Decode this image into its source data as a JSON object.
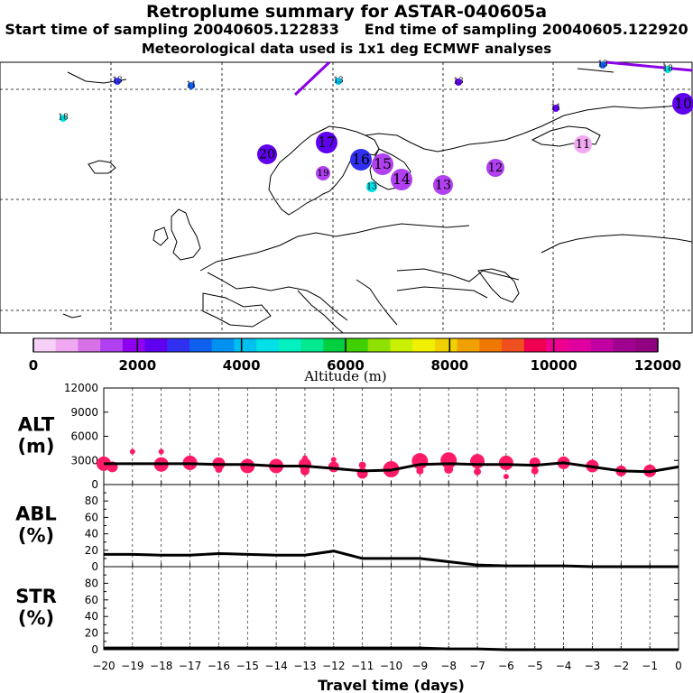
{
  "header": {
    "title": "Retroplume summary for ASTAR-040605a",
    "start_label": "Start time of sampling 20040605.122833",
    "end_label": "End time of sampling 20040605.122920",
    "met_label": "Meteorological data used is 1x1 deg ECMWF analyses"
  },
  "colors": {
    "scale": [
      "#f7d0f7",
      "#f0a8f0",
      "#d870e8",
      "#b040f0",
      "#9000f0",
      "#6000f0",
      "#3030f0",
      "#1060f0",
      "#0090f0",
      "#00c0f0",
      "#00e0e8",
      "#00f0c0",
      "#00e890",
      "#00d040",
      "#40d000",
      "#90e000",
      "#c8f000",
      "#f0f000",
      "#f0d000",
      "#f0a000",
      "#f07800",
      "#f05020",
      "#f00050",
      "#f00090",
      "#e000a0",
      "#c000a0",
      "#a00090",
      "#900080"
    ],
    "plume": "#ff1a66",
    "trajectory": "#8a00e6"
  },
  "map": {
    "labels": [
      {
        "text": "20",
        "alt": 2200
      },
      {
        "text": "19",
        "alt": 1400
      },
      {
        "text": "18",
        "alt": 4600
      },
      {
        "text": "17",
        "alt": 2500
      },
      {
        "text": "16",
        "alt": 2700
      },
      {
        "text": "15",
        "alt": 1700
      },
      {
        "text": "14",
        "alt": 1600
      },
      {
        "text": "13",
        "alt": 1500
      },
      {
        "text": "13",
        "alt": 4400
      },
      {
        "text": "13",
        "alt": 4000
      },
      {
        "text": "12",
        "alt": 1500
      },
      {
        "text": "11",
        "alt": 800
      },
      {
        "text": "10",
        "alt": 2200
      },
      {
        "text": "13",
        "alt": 2600
      },
      {
        "text": "11",
        "alt": 3300
      },
      {
        "text": "13",
        "alt": 2400
      },
      {
        "text": "11",
        "alt": 2200
      },
      {
        "text": "13",
        "alt": 3200
      },
      {
        "text": "18",
        "alt": 4600
      }
    ]
  },
  "colorbar": {
    "tick_labels": [
      "0",
      "2000",
      "4000",
      "6000",
      "8000",
      "10000",
      "12000"
    ],
    "title": "Altitude (m)"
  },
  "chart_data": [
    {
      "type": "line",
      "panel": "ALT",
      "ylabel": "ALT",
      "yunit": "(m)",
      "ylim": [
        0,
        12000
      ],
      "yticks": [
        "12000",
        "9000",
        "6000",
        "3000",
        "0"
      ],
      "x": [
        -20,
        -19,
        -18,
        -17,
        -16,
        -15,
        -14,
        -13,
        -12,
        -11,
        -10,
        -9,
        -8,
        -7,
        -6,
        -5,
        -4,
        -3,
        -2,
        -1,
        0
      ],
      "series": [
        {
          "name": "mean altitude",
          "values": [
            2600,
            2600,
            2600,
            2600,
            2500,
            2500,
            2300,
            2300,
            2000,
            1700,
            1800,
            2500,
            2600,
            2500,
            2500,
            2400,
            2700,
            2200,
            1700,
            1600,
            2200
          ]
        }
      ],
      "scatter": [
        {
          "x": -20,
          "y": 2600,
          "s": 8
        },
        {
          "x": -19.7,
          "y": 2200,
          "s": 6
        },
        {
          "x": -19,
          "y": 4100,
          "s": 3
        },
        {
          "x": -18,
          "y": 2500,
          "s": 8
        },
        {
          "x": -18,
          "y": 4100,
          "s": 3
        },
        {
          "x": -17,
          "y": 2700,
          "s": 8
        },
        {
          "x": -16,
          "y": 2600,
          "s": 7
        },
        {
          "x": -16,
          "y": 1900,
          "s": 4
        },
        {
          "x": -15,
          "y": 2300,
          "s": 8
        },
        {
          "x": -14,
          "y": 2300,
          "s": 8
        },
        {
          "x": -13,
          "y": 2500,
          "s": 7
        },
        {
          "x": -13,
          "y": 1700,
          "s": 5
        },
        {
          "x": -13,
          "y": 3300,
          "s": 3
        },
        {
          "x": -12,
          "y": 2200,
          "s": 6
        },
        {
          "x": -12,
          "y": 3100,
          "s": 3
        },
        {
          "x": -11,
          "y": 1400,
          "s": 6
        },
        {
          "x": -11,
          "y": 2400,
          "s": 4
        },
        {
          "x": -10,
          "y": 1900,
          "s": 9
        },
        {
          "x": -9,
          "y": 2900,
          "s": 9
        },
        {
          "x": -9,
          "y": 1700,
          "s": 4
        },
        {
          "x": -8,
          "y": 3000,
          "s": 9
        },
        {
          "x": -8,
          "y": 1900,
          "s": 5
        },
        {
          "x": -7,
          "y": 2900,
          "s": 8
        },
        {
          "x": -7,
          "y": 1600,
          "s": 4
        },
        {
          "x": -6,
          "y": 2700,
          "s": 8
        },
        {
          "x": -6,
          "y": 1000,
          "s": 3
        },
        {
          "x": -5,
          "y": 2700,
          "s": 6
        },
        {
          "x": -5,
          "y": 1700,
          "s": 4
        },
        {
          "x": -4,
          "y": 2700,
          "s": 7
        },
        {
          "x": -3,
          "y": 2300,
          "s": 7
        },
        {
          "x": -2,
          "y": 1700,
          "s": 6
        },
        {
          "x": -1,
          "y": 1700,
          "s": 7
        }
      ]
    },
    {
      "type": "line",
      "panel": "ABL",
      "ylabel": "ABL",
      "yunit": "(%)",
      "ylim": [
        0,
        100
      ],
      "yticks": [
        "80",
        "60",
        "40",
        "20",
        "0"
      ],
      "x": [
        -20,
        -19,
        -18,
        -17,
        -16,
        -15,
        -14,
        -13,
        -12,
        -11,
        -10,
        -9,
        -8,
        -7,
        -6,
        -5,
        -4,
        -3,
        -2,
        -1,
        0
      ],
      "series": [
        {
          "name": "ABL fraction",
          "values": [
            15,
            15,
            14,
            14,
            16,
            15,
            14,
            14,
            19,
            10,
            10,
            10,
            6,
            2,
            1,
            1,
            1,
            0,
            0,
            0,
            0
          ]
        }
      ]
    },
    {
      "type": "line",
      "panel": "STR",
      "ylabel": "STR",
      "yunit": "(%)",
      "ylim": [
        0,
        100
      ],
      "yticks": [
        "80",
        "60",
        "40",
        "20",
        "0"
      ],
      "x": [
        -20,
        -19,
        -18,
        -17,
        -16,
        -15,
        -14,
        -13,
        -12,
        -11,
        -10,
        -9,
        -8,
        -7,
        -6,
        -5,
        -4,
        -3,
        -2,
        -1,
        0
      ],
      "series": [
        {
          "name": "stratospheric fraction",
          "values": [
            2,
            2,
            2,
            2,
            2,
            2,
            2,
            2,
            2,
            2,
            2,
            2,
            1,
            1,
            0,
            0,
            0,
            0,
            0,
            0,
            0
          ]
        }
      ],
      "xlabel": "Travel time (days)",
      "xticks": [
        "−20",
        "−19",
        "−18",
        "−17",
        "−16",
        "−15",
        "−14",
        "−13",
        "−12",
        "−11",
        "−10",
        "−9",
        "−8",
        "−7",
        "−6",
        "−5",
        "−4",
        "−3",
        "−2",
        "−1",
        "0"
      ]
    }
  ]
}
